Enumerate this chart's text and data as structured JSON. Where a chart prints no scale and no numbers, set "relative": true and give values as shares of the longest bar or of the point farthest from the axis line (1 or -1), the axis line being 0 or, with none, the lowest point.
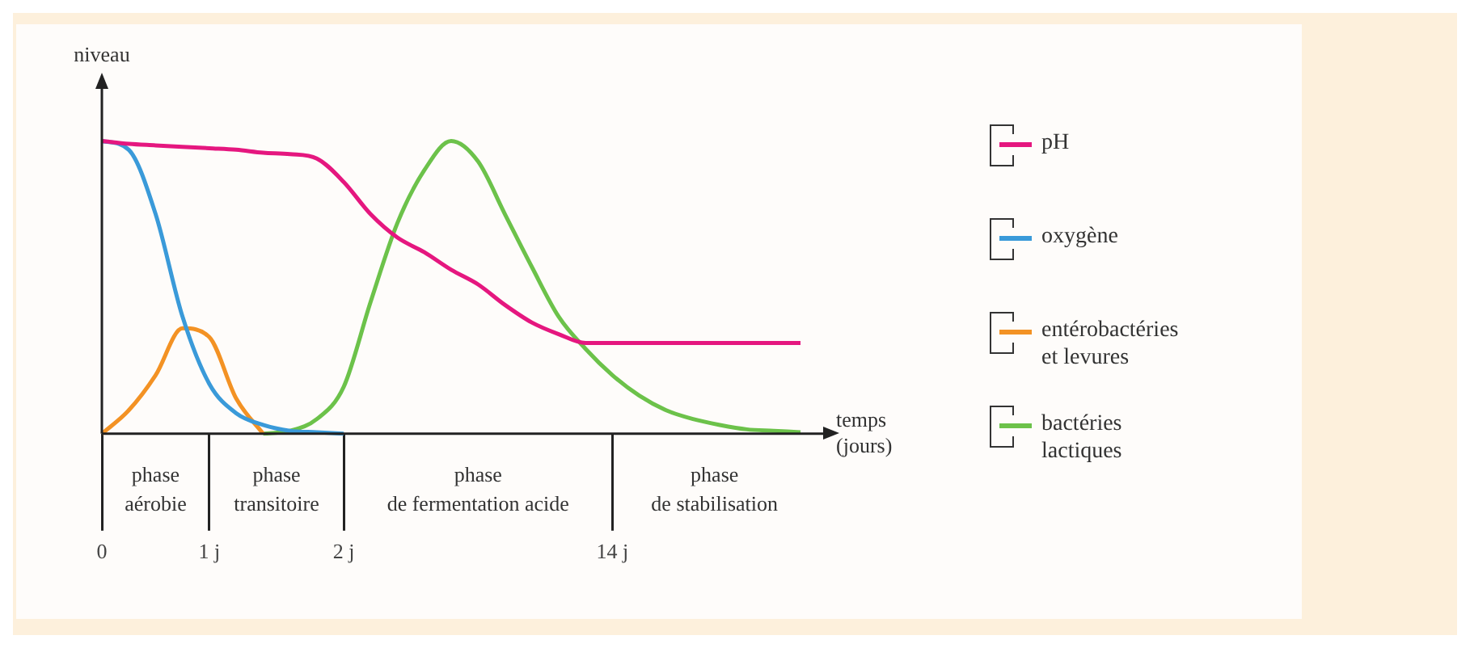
{
  "chart_data": {
    "type": "line",
    "relative": true,
    "ylabel": "niveau",
    "xlabel": "temps (jours)",
    "categories": [
      "0",
      null,
      null,
      null,
      "1 j",
      null,
      null,
      null,
      null,
      "2 j",
      null,
      null,
      null,
      null,
      null,
      null,
      null,
      null,
      null,
      "14 j",
      null,
      null,
      null,
      null,
      null,
      null,
      null
    ],
    "series": [
      {
        "name": "pH",
        "color": "#e5177f",
        "values": [
          1,
          0.99,
          0.985,
          0.98,
          0.975,
          0.97,
          0.96,
          0.955,
          0.94,
          0.86,
          0.75,
          0.67,
          0.62,
          0.56,
          0.51,
          0.44,
          0.38,
          0.34,
          0.31,
          0.31,
          0.31,
          0.31,
          0.31,
          0.31,
          0.31,
          0.31,
          0.31
        ]
      },
      {
        "name": "oxygène",
        "color": "#3a9ad9",
        "values": [
          1,
          0.97,
          0.75,
          0.4,
          0.17,
          0.07,
          0.03,
          0.01,
          0.005,
          0,
          null,
          null,
          null,
          null,
          null,
          null,
          null,
          null,
          null,
          null,
          null,
          null,
          null,
          null,
          null,
          null,
          null
        ]
      },
      {
        "name": "entérobactéries et levures",
        "color": "#f39224",
        "values": [
          0,
          0.08,
          0.2,
          0.36,
          0.33,
          0.12,
          0,
          null,
          null,
          null,
          null,
          null,
          null,
          null,
          null,
          null,
          null,
          null,
          null,
          null,
          null,
          null,
          null,
          null,
          null,
          null,
          null
        ]
      },
      {
        "name": "bactéries lactiques",
        "color": "#6cc24a",
        "values": [
          null,
          null,
          null,
          null,
          null,
          null,
          0,
          0.01,
          0.05,
          0.16,
          0.45,
          0.72,
          0.9,
          1,
          0.93,
          0.75,
          0.57,
          0.4,
          0.29,
          0.2,
          0.13,
          0.08,
          0.05,
          0.03,
          0.015,
          0.01,
          0.005
        ]
      }
    ],
    "annotations": [
      "phase aérobie",
      "phase transitoire",
      "phase de fermentation acide",
      "phase de stabilisation"
    ],
    "tick_labels": "x",
    "grid": false,
    "legend": "right",
    "marker": "none"
  }
}
